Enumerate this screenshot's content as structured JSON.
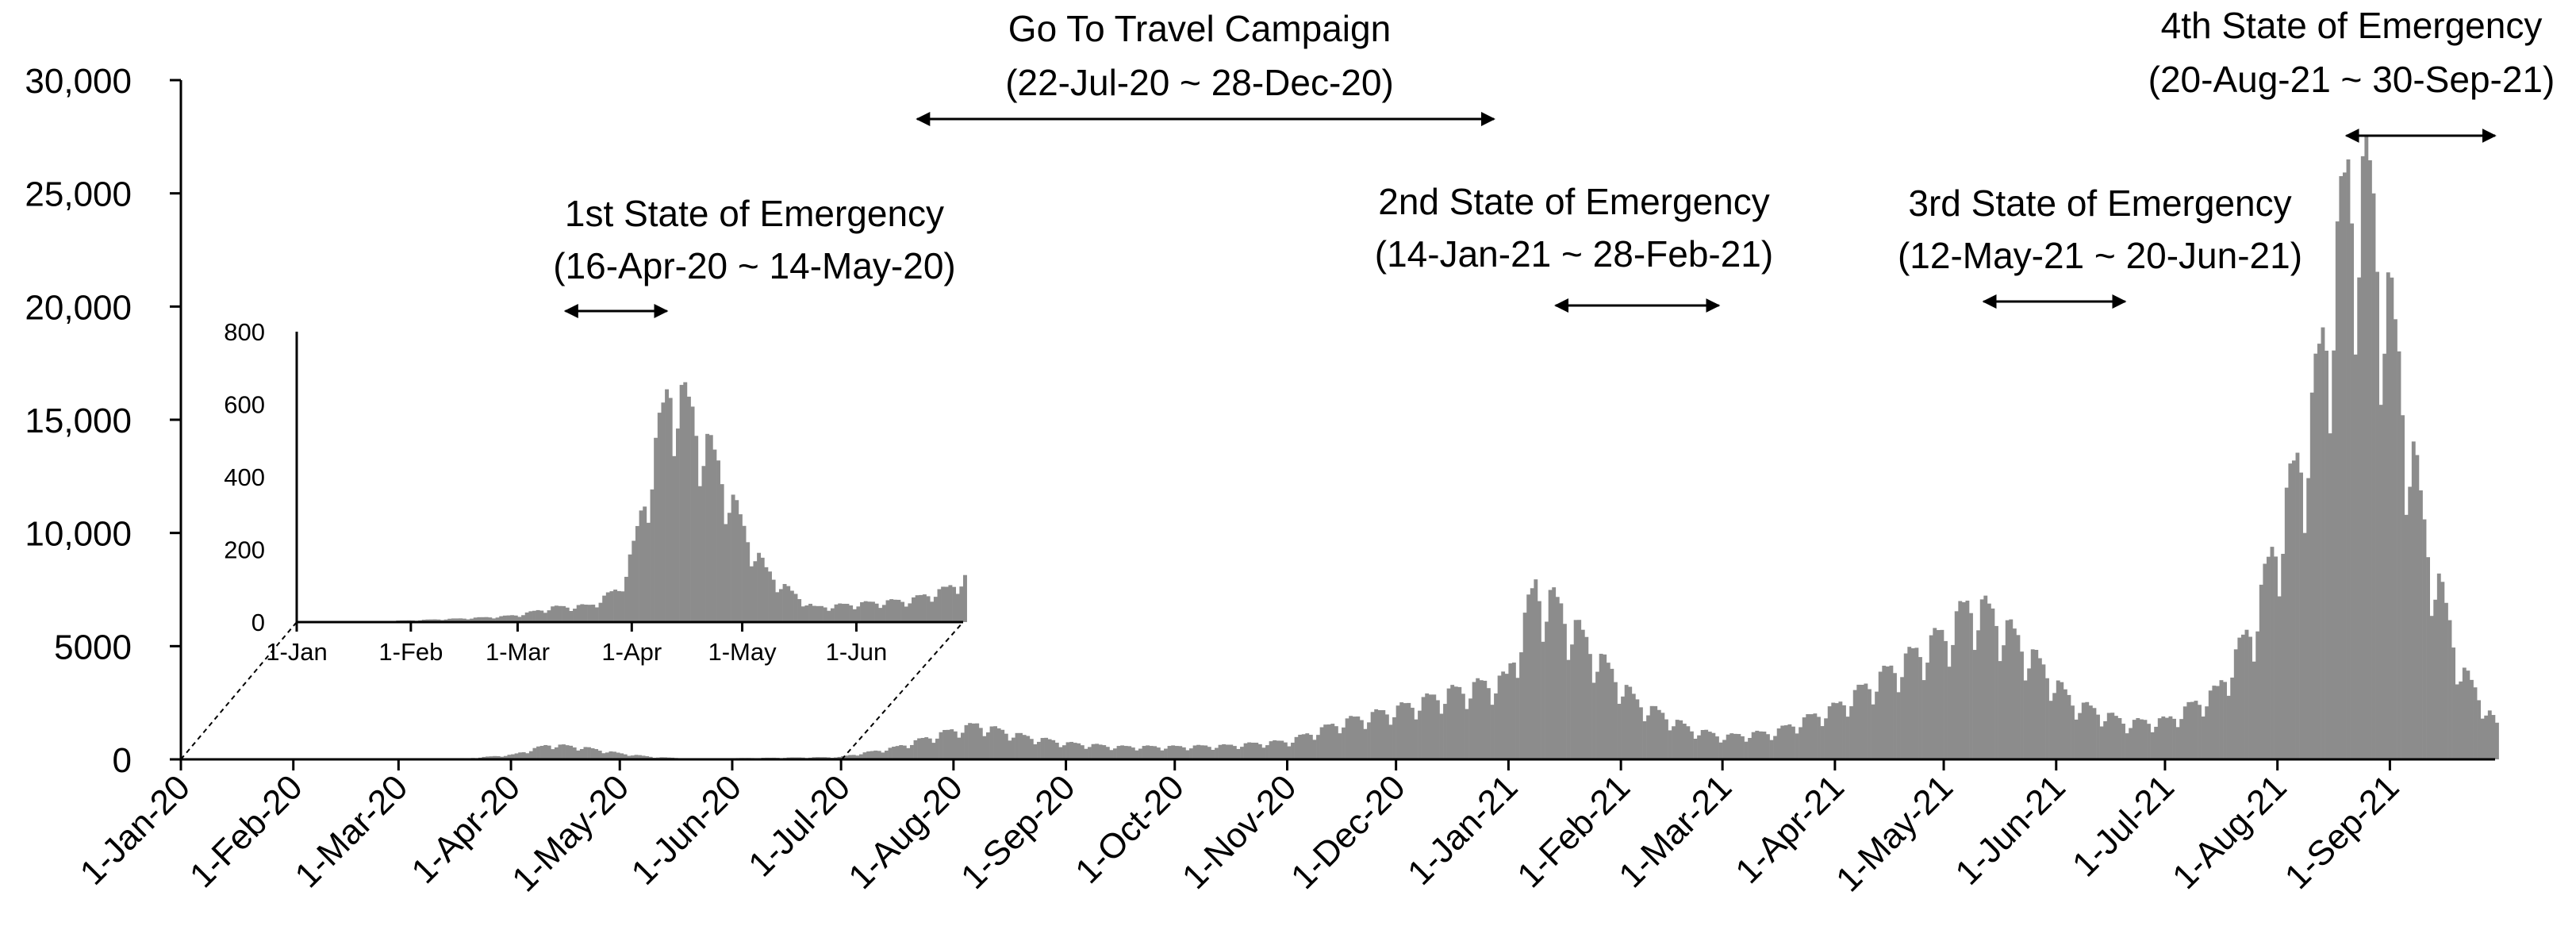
{
  "chart_data": [
    {
      "type": "bar",
      "title": "",
      "xlabel": "",
      "ylabel": "",
      "ylim": [
        0,
        30000
      ],
      "xlim": [
        "2020-01-01",
        "2021-09-30"
      ],
      "y_ticks": [
        0,
        5000,
        10000,
        15000,
        20000,
        25000,
        30000
      ],
      "y_tick_labels": [
        "0",
        "5000",
        "10,000",
        "15,000",
        "20,000",
        "25,000",
        "30,000"
      ],
      "x_tick_labels": [
        "1-Jan-20",
        "1-Feb-20",
        "1-Mar-20",
        "1-Apr-20",
        "1-May-20",
        "1-Jun-20",
        "1-Jul-20",
        "1-Aug-20",
        "1-Sep-20",
        "1-Oct-20",
        "1-Nov-20",
        "1-Dec-20",
        "1-Jan-21",
        "1-Feb-21",
        "1-Mar-21",
        "1-Apr-21",
        "1-May-21",
        "1-Jun-21",
        "1-Jul-21",
        "1-Aug-21",
        "1-Sep-21"
      ],
      "x_tick_dates": [
        "2020-01-01",
        "2020-02-01",
        "2020-03-01",
        "2020-04-01",
        "2020-05-01",
        "2020-06-01",
        "2020-07-01",
        "2020-08-01",
        "2020-09-01",
        "2020-10-01",
        "2020-11-01",
        "2020-12-01",
        "2021-01-01",
        "2021-02-01",
        "2021-03-01",
        "2021-04-01",
        "2021-05-01",
        "2021-06-01",
        "2021-07-01",
        "2021-08-01",
        "2021-09-01"
      ],
      "grid": false,
      "bar_color": "#8c8c8c",
      "series": [
        {
          "name": "",
          "points": [
            [
              "2020-01-01",
              0
            ],
            [
              "2020-02-01",
              10
            ],
            [
              "2020-03-01",
              30
            ],
            [
              "2020-03-20",
              50
            ],
            [
              "2020-04-01",
              200
            ],
            [
              "2020-04-11",
              640
            ],
            [
              "2020-04-20",
              530
            ],
            [
              "2020-05-01",
              250
            ],
            [
              "2020-05-10",
              100
            ],
            [
              "2020-05-20",
              40
            ],
            [
              "2020-06-01",
              50
            ],
            [
              "2020-06-30",
              100
            ],
            [
              "2020-07-15",
              500
            ],
            [
              "2020-08-01",
              1300
            ],
            [
              "2020-08-07",
              1500
            ],
            [
              "2020-08-20",
              1000
            ],
            [
              "2020-09-01",
              700
            ],
            [
              "2020-09-15",
              550
            ],
            [
              "2020-10-01",
              550
            ],
            [
              "2020-10-15",
              600
            ],
            [
              "2020-11-01",
              800
            ],
            [
              "2020-11-15",
              1600
            ],
            [
              "2020-12-01",
              2200
            ],
            [
              "2020-12-15",
              2900
            ],
            [
              "2020-12-31",
              3500
            ],
            [
              "2021-01-08",
              7500
            ],
            [
              "2021-01-15",
              6500
            ],
            [
              "2021-01-25",
              4500
            ],
            [
              "2021-02-05",
              2500
            ],
            [
              "2021-02-20",
              1300
            ],
            [
              "2021-03-01",
              1000
            ],
            [
              "2021-03-15",
              1200
            ],
            [
              "2021-04-01",
              2300
            ],
            [
              "2021-04-15",
              3800
            ],
            [
              "2021-05-01",
              5500
            ],
            [
              "2021-05-08",
              6800
            ],
            [
              "2021-05-15",
              6200
            ],
            [
              "2021-05-25",
              4500
            ],
            [
              "2021-06-05",
              2500
            ],
            [
              "2021-06-20",
              1600
            ],
            [
              "2021-07-01",
              1700
            ],
            [
              "2021-07-15",
              3000
            ],
            [
              "2021-07-25",
              6000
            ],
            [
              "2021-08-01",
              10000
            ],
            [
              "2021-08-10",
              15000
            ],
            [
              "2021-08-20",
              25000
            ],
            [
              "2021-08-26",
              24500
            ],
            [
              "2021-09-01",
              19000
            ],
            [
              "2021-09-10",
              10000
            ],
            [
              "2021-09-20",
              4000
            ],
            [
              "2021-09-30",
              1500
            ]
          ]
        }
      ]
    },
    {
      "type": "bar",
      "title": "",
      "xlabel": "",
      "ylabel": "",
      "ylim": [
        0,
        800
      ],
      "xlim": [
        "2020-01-01",
        "2020-06-30"
      ],
      "y_ticks": [
        0,
        200,
        400,
        600,
        800
      ],
      "y_tick_labels": [
        "0",
        "200",
        "400",
        "600",
        "800"
      ],
      "x_tick_labels": [
        "1-Jan",
        "1-Feb",
        "1-Mar",
        "1-Apr",
        "1-May",
        "1-Jun"
      ],
      "x_tick_dates": [
        "2020-01-01",
        "2020-02-01",
        "2020-03-01",
        "2020-04-01",
        "2020-05-01",
        "2020-06-01"
      ],
      "grid": false,
      "bar_color": "#8c8c8c",
      "series": [
        {
          "name": "",
          "points": [
            [
              "2020-01-01",
              0
            ],
            [
              "2020-01-20",
              2
            ],
            [
              "2020-02-01",
              5
            ],
            [
              "2020-02-15",
              10
            ],
            [
              "2020-02-25",
              15
            ],
            [
              "2020-03-01",
              20
            ],
            [
              "2020-03-10",
              40
            ],
            [
              "2020-03-20",
              45
            ],
            [
              "2020-03-28",
              90
            ],
            [
              "2020-04-01",
              200
            ],
            [
              "2020-04-05",
              380
            ],
            [
              "2020-04-11",
              650
            ],
            [
              "2020-04-17",
              560
            ],
            [
              "2020-04-25",
              400
            ],
            [
              "2020-05-01",
              250
            ],
            [
              "2020-05-07",
              140
            ],
            [
              "2020-05-14",
              80
            ],
            [
              "2020-05-20",
              40
            ],
            [
              "2020-06-01",
              50
            ],
            [
              "2020-06-15",
              60
            ],
            [
              "2020-06-25",
              90
            ],
            [
              "2020-06-30",
              120
            ]
          ]
        }
      ]
    }
  ],
  "annotations": {
    "goto": {
      "line1": "Go To Travel Campaign",
      "line2": "(22-Jul-20 ~ 28-Dec-20)",
      "start": "2020-07-22",
      "end": "2020-12-28"
    },
    "soe1": {
      "line1": "1st State of Emergency",
      "line2": "(16-Apr-20 ~ 14-May-20)",
      "start": "2020-04-16",
      "end": "2020-05-14"
    },
    "soe2": {
      "line1": "2nd State of Emergency",
      "line2": "(14-Jan-21 ~ 28-Feb-21)",
      "start": "2021-01-14",
      "end": "2021-02-28"
    },
    "soe3": {
      "line1": "3rd State of Emergency",
      "line2": "(12-May-21 ~ 20-Jun-21)",
      "start": "2021-05-12",
      "end": "2021-06-20"
    },
    "soe4": {
      "line1": "4th State of Emergency",
      "line2": "(20-Aug-21 ~ 30-Sep-21)",
      "start": "2021-08-20",
      "end": "2021-09-30"
    }
  }
}
